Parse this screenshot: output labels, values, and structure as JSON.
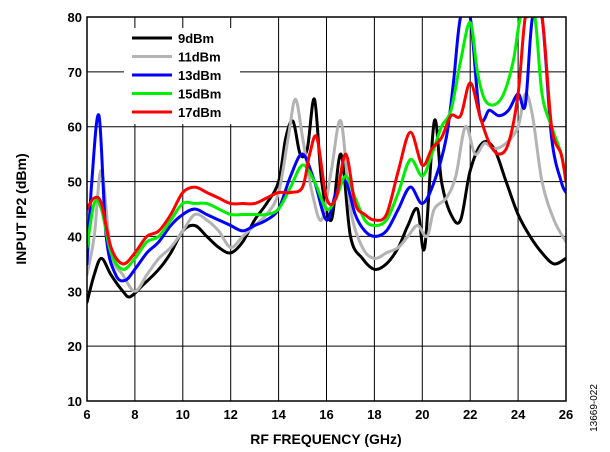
{
  "chart_data": {
    "type": "line",
    "xlabel": "RF FREQUENCY (GHz)",
    "ylabel": "INPUT IP2 (dBm)",
    "xlim": [
      6,
      26
    ],
    "ylim": [
      10,
      80
    ],
    "xticks": [
      6,
      8,
      10,
      12,
      14,
      16,
      18,
      20,
      22,
      24,
      26
    ],
    "yticks": [
      10,
      20,
      30,
      40,
      50,
      60,
      70,
      80
    ],
    "grid": true,
    "legend_position": "top-left",
    "figure_id": "13669-022",
    "series": [
      {
        "name": "9dBm",
        "color": "#000000",
        "x": [
          6,
          6.3,
          6.6,
          7,
          7.5,
          7.8,
          8.3,
          9,
          9.5,
          10,
          10.5,
          11,
          11.5,
          12,
          12.5,
          13,
          13.5,
          14,
          14.3,
          14.6,
          14.9,
          15.2,
          15.5,
          15.8,
          16.2,
          16.6,
          17,
          17.5,
          18,
          18.5,
          19,
          19.4,
          19.8,
          20.1,
          20.5,
          20.8,
          21.2,
          21.6,
          22,
          22.5,
          23,
          23.5,
          24,
          24.5,
          25,
          25.5,
          26
        ],
        "y": [
          28,
          33,
          36,
          33,
          30,
          29,
          31,
          34,
          37,
          41,
          42,
          40,
          38,
          37,
          39,
          43,
          46,
          50,
          58,
          61,
          55,
          56,
          65,
          50,
          43,
          55,
          40,
          36,
          34,
          35,
          38,
          42,
          45,
          38,
          61,
          50,
          44,
          43,
          52,
          57,
          56,
          50,
          44,
          40,
          37,
          35,
          36
        ]
      },
      {
        "name": "11dBm",
        "color": "#b3b3b3",
        "x": [
          6,
          6.3,
          6.6,
          7,
          7.5,
          8,
          8.5,
          9,
          9.5,
          10,
          10.5,
          11,
          11.5,
          12,
          12.5,
          13,
          13.5,
          14,
          14.4,
          14.7,
          15,
          15.4,
          15.8,
          16.2,
          16.6,
          17,
          17.5,
          18,
          18.5,
          19,
          19.4,
          19.8,
          20.2,
          20.5,
          21,
          21.4,
          21.8,
          22.2,
          22.6,
          23,
          23.5,
          24,
          24.3,
          24.6,
          25,
          25.5,
          26
        ],
        "y": [
          33,
          40,
          52,
          37,
          33,
          30,
          33,
          36,
          38,
          41,
          44,
          43,
          41,
          38,
          40,
          42,
          44,
          48,
          58,
          65,
          58,
          48,
          43,
          52,
          61,
          45,
          38,
          36,
          37,
          38,
          40,
          42,
          40,
          45,
          47,
          51,
          60,
          55,
          57,
          56,
          57,
          60,
          66,
          62,
          50,
          43,
          39
        ]
      },
      {
        "name": "13dBm",
        "color": "#0000ff",
        "x": [
          6,
          6.2,
          6.5,
          6.8,
          7.2,
          7.6,
          8,
          8.5,
          9,
          9.5,
          10,
          10.5,
          11,
          11.5,
          12,
          12.5,
          13,
          13.5,
          14,
          14.5,
          15,
          15.5,
          16,
          16.4,
          16.8,
          17.2,
          17.6,
          18,
          18.5,
          19,
          19.5,
          20,
          20.5,
          21,
          21.3,
          21.6,
          22,
          22.4,
          22.8,
          23.2,
          23.6,
          24,
          24.3,
          24.6,
          25,
          25.4,
          25.8,
          26
        ],
        "y": [
          35,
          50,
          62,
          40,
          33,
          32,
          34,
          37,
          39,
          42,
          44,
          45,
          44,
          43,
          42,
          41,
          42,
          43,
          45,
          51,
          55,
          50,
          43,
          48,
          50,
          44,
          41,
          40,
          41,
          45,
          49,
          46,
          50,
          58,
          68,
          80,
          80,
          62,
          63,
          62,
          63,
          66,
          64,
          80,
          80,
          58,
          50,
          48
        ]
      },
      {
        "name": "15dBm",
        "color": "#00ee00",
        "x": [
          6,
          6.3,
          6.6,
          7,
          7.5,
          8,
          8.5,
          9,
          9.5,
          10,
          10.5,
          11,
          11.5,
          12,
          12.5,
          13,
          13.5,
          14,
          14.5,
          15,
          15.5,
          16,
          16.4,
          16.8,
          17.2,
          17.6,
          18,
          18.5,
          19,
          19.5,
          20,
          20.4,
          20.8,
          21.2,
          21.6,
          22,
          22.3,
          22.6,
          23,
          23.4,
          23.8,
          24.1,
          24.4,
          24.7,
          25,
          25.4,
          25.8,
          26
        ],
        "y": [
          38,
          46,
          45,
          37,
          34,
          36,
          39,
          40,
          43,
          46,
          46,
          46,
          45,
          44,
          44,
          44,
          44,
          45,
          49,
          53,
          50,
          45,
          47,
          51,
          47,
          43,
          42,
          43,
          48,
          54,
          51,
          55,
          60,
          63,
          72,
          79,
          70,
          65,
          64,
          66,
          72,
          80,
          80,
          80,
          66,
          60,
          55,
          50
        ]
      },
      {
        "name": "17dBm",
        "color": "#ff0000",
        "x": [
          6,
          6.3,
          6.6,
          7,
          7.5,
          8,
          8.5,
          9,
          9.5,
          10,
          10.5,
          11,
          11.5,
          12,
          12.5,
          13,
          13.5,
          14,
          14.5,
          15,
          15.3,
          15.6,
          16,
          16.4,
          16.8,
          17.2,
          17.6,
          18,
          18.5,
          19,
          19.5,
          20,
          20.4,
          20.8,
          21.2,
          21.6,
          22,
          22.4,
          22.8,
          23.2,
          23.6,
          24,
          24.3,
          24.6,
          25,
          25.4,
          25.8,
          26
        ],
        "y": [
          45,
          47,
          46,
          38,
          35,
          37,
          40,
          41,
          44,
          48,
          49,
          48,
          47,
          46,
          46,
          46,
          47,
          48,
          48,
          49,
          55,
          58,
          47,
          47,
          55,
          46,
          44,
          43,
          44,
          52,
          59,
          53,
          56,
          58,
          62,
          62,
          68,
          62,
          57,
          55,
          57,
          66,
          80,
          80,
          80,
          60,
          55,
          50
        ]
      }
    ]
  }
}
